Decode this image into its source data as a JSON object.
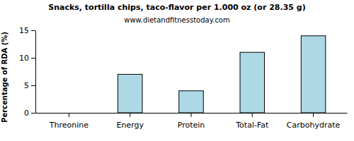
{
  "chart_data": {
    "type": "bar",
    "title": "Snacks, tortilla chips, taco-flavor per 1.000 oz (or 28.35 g)",
    "subtitle": "www.dietandfitnesstoday.com",
    "y_label": "Percentage of RDA (%)",
    "categories": [
      "Threonine",
      "Energy",
      "Protein",
      "Total-Fat",
      "Carbohydrate"
    ],
    "values": [
      0,
      7,
      4,
      11,
      14
    ],
    "color": "#add8e6",
    "ylim": [
      0,
      15
    ],
    "yticks": [
      0,
      5,
      10,
      15
    ],
    "grid": false
  }
}
